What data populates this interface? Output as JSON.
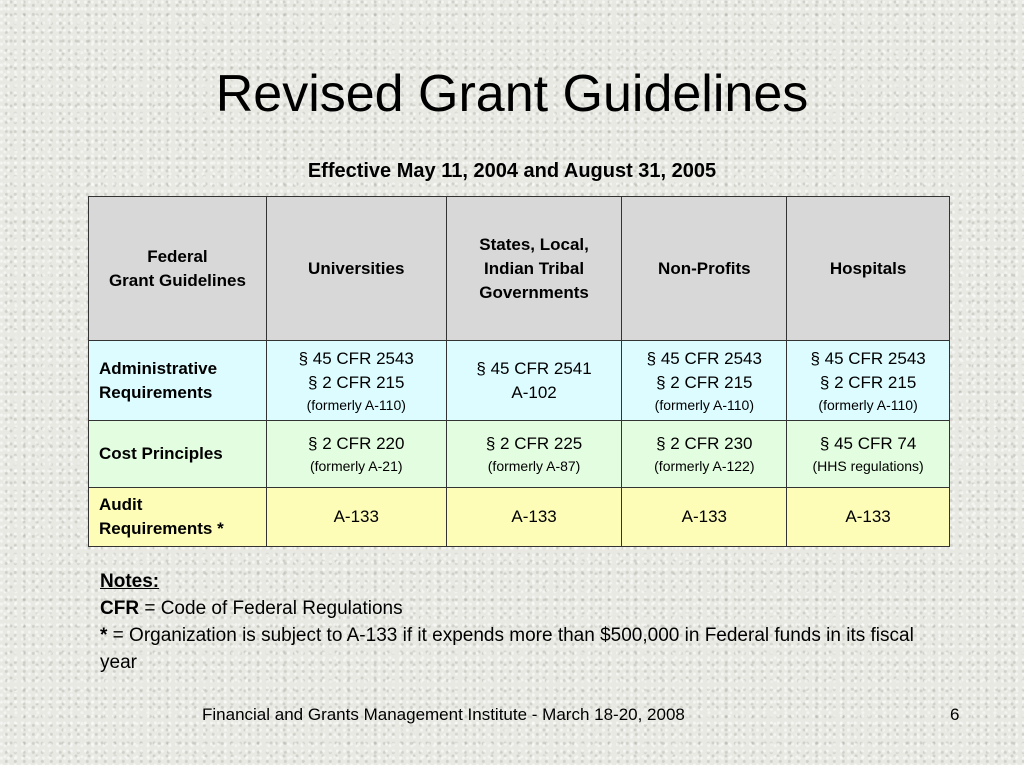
{
  "slide": {
    "title": "Revised Grant Guidelines",
    "subtitle": "Effective May 11, 2004 and August 31, 2005"
  },
  "table": {
    "header": {
      "corner_line1": "Federal",
      "corner_line2": "Grant Guidelines",
      "col1": "Universities",
      "col2_line1": "States, Local,",
      "col2_line2": "Indian Tribal",
      "col2_line3": "Governments",
      "col3": "Non-Profits",
      "col4": "Hospitals"
    },
    "admin": {
      "label_line1": "Administrative",
      "label_line2": "Requirements",
      "c1_l1": "§ 45 CFR 2543",
      "c1_l2": "§ 2 CFR 215",
      "c1_note": "(formerly A-110)",
      "c2_l1": "§ 45 CFR 2541",
      "c2_l2": "A-102",
      "c3_l1": "§ 45 CFR 2543",
      "c3_l2": "§ 2 CFR 215",
      "c3_note": "(formerly A-110)",
      "c4_l1": "§ 45 CFR 2543",
      "c4_l2": "§ 2 CFR 215",
      "c4_note": "(formerly A-110)"
    },
    "cost": {
      "label": "Cost Principles",
      "c1_l1": "§ 2 CFR 220",
      "c1_note": "(formerly A-21)",
      "c2_l1": "§ 2 CFR 225",
      "c2_note": "(formerly A-87)",
      "c3_l1": "§ 2 CFR 230",
      "c3_note": "(formerly A-122)",
      "c4_l1": "§ 45 CFR 74",
      "c4_note": "(HHS regulations)"
    },
    "audit": {
      "label_line1": "Audit",
      "label_line2": "Requirements *",
      "c1": "A-133",
      "c2": "A-133",
      "c3": "A-133",
      "c4": "A-133"
    }
  },
  "notes": {
    "heading": "Notes:",
    "cfr_term": "CFR",
    "cfr_def": " = Code of Federal Regulations",
    "star_term": "*",
    "star_def": " = Organization is subject to A-133 if it expends more than $500,000 in Federal funds in its fiscal year"
  },
  "footer": {
    "text": "Financial and Grants Management Institute - March 18-20, 2008",
    "page_number": "6"
  }
}
